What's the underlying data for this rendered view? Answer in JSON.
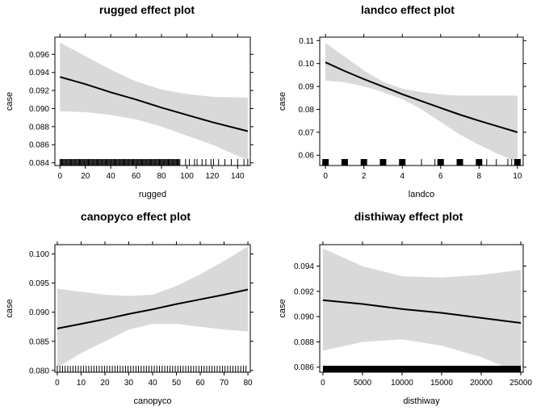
{
  "colors": {
    "band": "#d9d9d9",
    "line": "#000000",
    "frame": "#000000",
    "rug": "#000000"
  },
  "chart_data": [
    {
      "type": "line",
      "title": "rugged effect plot",
      "xlabel": "rugged",
      "ylabel": "case",
      "xlim": [
        -4,
        150
      ],
      "ylim": [
        0.0837,
        0.0979
      ],
      "xticks": [
        0,
        20,
        40,
        60,
        80,
        100,
        120,
        140
      ],
      "yticks": [
        0.084,
        0.086,
        0.088,
        0.09,
        0.092,
        0.094,
        0.096
      ],
      "ytick_labels": [
        "0.084",
        "0.086",
        "0.088",
        "0.090",
        "0.092",
        "0.094",
        "0.096"
      ],
      "x": [
        0,
        20,
        40,
        60,
        80,
        100,
        120,
        148
      ],
      "y": [
        0.0935,
        0.0927,
        0.0918,
        0.091,
        0.0901,
        0.0893,
        0.0885,
        0.0875
      ],
      "lower": [
        0.0897,
        0.0896,
        0.0893,
        0.0888,
        0.088,
        0.087,
        0.086,
        0.0843
      ],
      "upper": [
        0.0973,
        0.0958,
        0.0943,
        0.093,
        0.0921,
        0.0916,
        0.0913,
        0.0912
      ],
      "rug": {
        "dense_from": 0,
        "dense_to": 95,
        "sparse": [
          99,
          102,
          106,
          108,
          112,
          115,
          119,
          121,
          125,
          130,
          135,
          140,
          145,
          148
        ]
      }
    },
    {
      "type": "line",
      "title": "landco effect plot",
      "xlabel": "landco",
      "ylabel": "case",
      "xlim": [
        -0.3,
        10.3
      ],
      "ylim": [
        0.0555,
        0.1115
      ],
      "xticks": [
        0,
        2,
        4,
        6,
        8,
        10
      ],
      "yticks": [
        0.06,
        0.07,
        0.08,
        0.09,
        0.1,
        0.11
      ],
      "ytick_labels": [
        "0.06",
        "0.07",
        "0.08",
        "0.09",
        "0.10",
        "0.11"
      ],
      "x": [
        0,
        1,
        2,
        3,
        4,
        5,
        6,
        7,
        8,
        9,
        10
      ],
      "y": [
        0.1005,
        0.0967,
        0.0932,
        0.0899,
        0.0866,
        0.0836,
        0.0806,
        0.0777,
        0.075,
        0.0725,
        0.07
      ],
      "lower": [
        0.0925,
        0.0918,
        0.09,
        0.0875,
        0.0845,
        0.08,
        0.0745,
        0.069,
        0.0645,
        0.0605,
        0.057
      ],
      "upper": [
        0.109,
        0.103,
        0.097,
        0.092,
        0.089,
        0.0875,
        0.0865,
        0.086,
        0.086,
        0.086,
        0.086
      ],
      "rug": {
        "blocks": [
          0,
          1,
          2,
          3,
          4,
          6,
          7,
          8,
          10
        ],
        "ticks": [
          5,
          5.7,
          8.4,
          8.9,
          9.5,
          9.7,
          9.9
        ]
      }
    },
    {
      "type": "line",
      "title": "canopyco effect plot",
      "xlabel": "canopyco",
      "ylabel": "case",
      "xlim": [
        -1,
        81
      ],
      "ylim": [
        0.0797,
        0.1016
      ],
      "xticks": [
        0,
        10,
        20,
        30,
        40,
        50,
        60,
        70,
        80
      ],
      "yticks": [
        0.08,
        0.085,
        0.09,
        0.095,
        0.1
      ],
      "ytick_labels": [
        "0.080",
        "0.085",
        "0.090",
        "0.095",
        "0.100"
      ],
      "x": [
        0,
        10,
        20,
        30,
        40,
        50,
        60,
        70,
        80
      ],
      "y": [
        0.0872,
        0.088,
        0.0888,
        0.0897,
        0.0905,
        0.0914,
        0.0922,
        0.093,
        0.0939
      ],
      "lower": [
        0.0805,
        0.083,
        0.085,
        0.087,
        0.088,
        0.088,
        0.0875,
        0.087,
        0.0867
      ],
      "upper": [
        0.094,
        0.0935,
        0.093,
        0.0928,
        0.093,
        0.0945,
        0.0965,
        0.0988,
        0.1013
      ],
      "rug": {
        "dense_from": 0,
        "dense_to": 80,
        "step": 1.1
      }
    },
    {
      "type": "line",
      "title": "disthiway effect plot",
      "xlabel": "disthiway",
      "ylabel": "case",
      "xlim": [
        -400,
        25300
      ],
      "ylim": [
        0.0856,
        0.0957
      ],
      "xticks": [
        0,
        5000,
        10000,
        15000,
        20000,
        25000
      ],
      "yticks": [
        0.086,
        0.088,
        0.09,
        0.092,
        0.094
      ],
      "ytick_labels": [
        "0.086",
        "0.088",
        "0.090",
        "0.092",
        "0.094"
      ],
      "x": [
        0,
        5000,
        10000,
        15000,
        20000,
        25000
      ],
      "y": [
        0.0913,
        0.091,
        0.0906,
        0.0903,
        0.0899,
        0.0895
      ],
      "lower": [
        0.0873,
        0.088,
        0.0882,
        0.0877,
        0.0868,
        0.0855
      ],
      "upper": [
        0.0954,
        0.094,
        0.0932,
        0.0931,
        0.0933,
        0.0937
      ],
      "rug": {
        "solid_from": 0,
        "solid_to": 25000
      }
    }
  ]
}
